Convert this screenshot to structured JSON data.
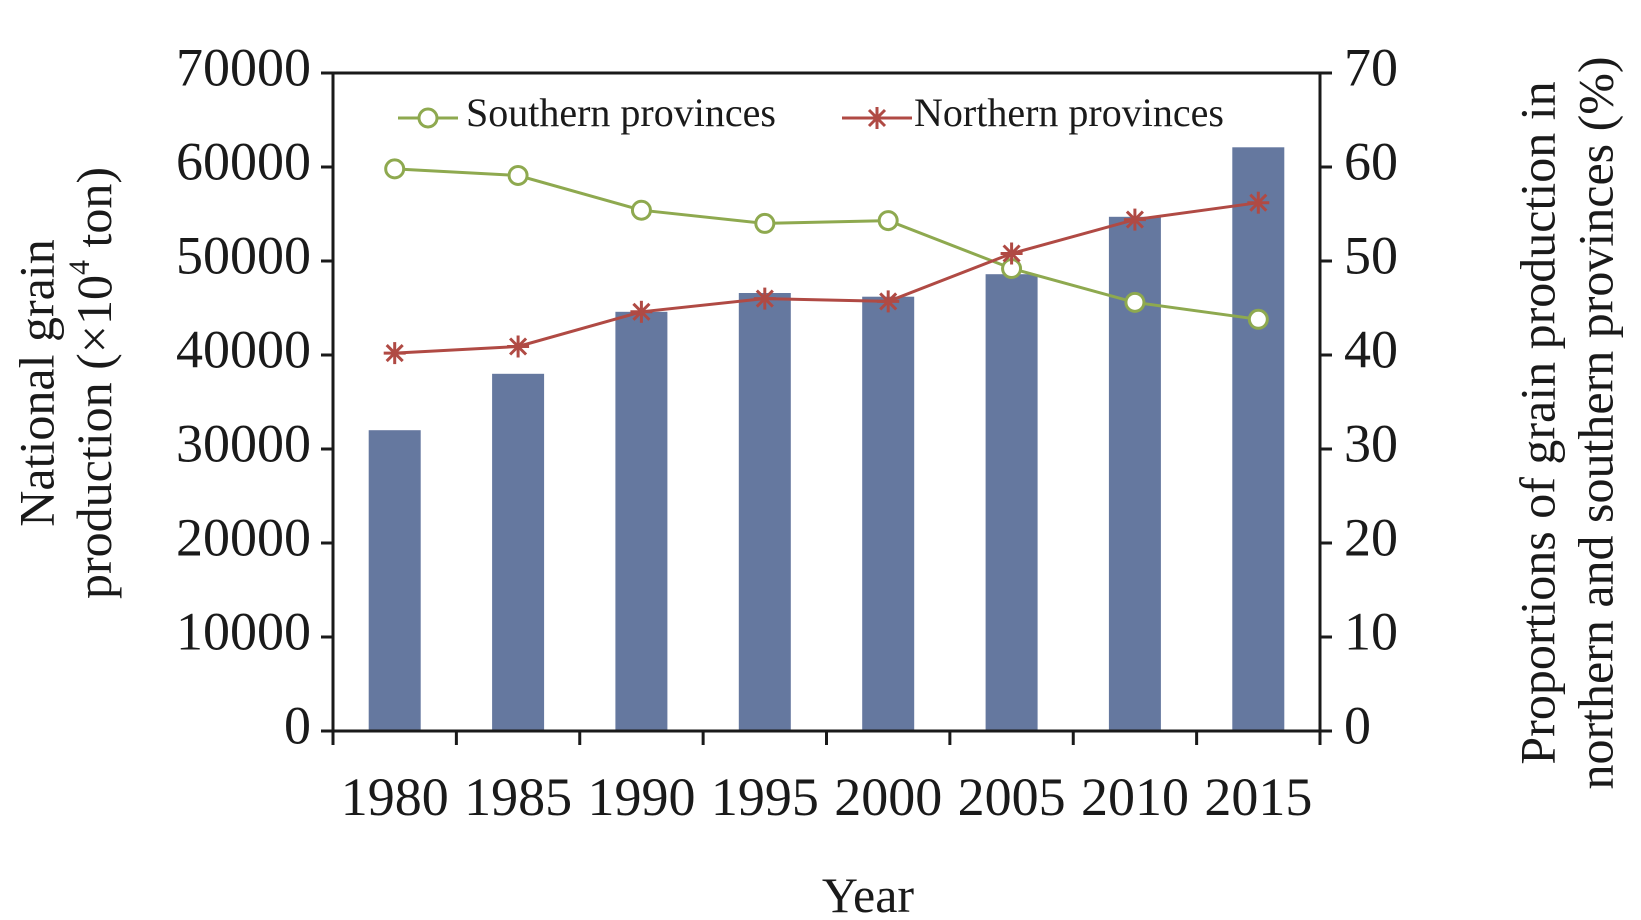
{
  "chart_data": {
    "type": "bar",
    "categories": [
      "1980",
      "1985",
      "1990",
      "1995",
      "2000",
      "2005",
      "2010",
      "2015"
    ],
    "series": [
      {
        "name": "",
        "type": "bar",
        "axis": "left",
        "color": "#65789f",
        "values": [
          32000,
          38000,
          44600,
          46600,
          46200,
          48600,
          54700,
          62100
        ]
      },
      {
        "name": "Southern provinces",
        "type": "line",
        "axis": "right",
        "color": "#8ea94f",
        "marker": "circle",
        "values": [
          59.8,
          59.1,
          55.4,
          54.0,
          54.3,
          49.2,
          45.6,
          43.8
        ]
      },
      {
        "name": "Northern provinces",
        "type": "line",
        "axis": "right",
        "color": "#b04a44",
        "marker": "asterisk",
        "values": [
          40.2,
          40.9,
          44.6,
          46.0,
          45.7,
          50.8,
          54.4,
          56.2
        ]
      }
    ],
    "xlabel": "Year",
    "ylabel_left_line1": "National grain",
    "ylabel_left_line2_main": "production (×10",
    "ylabel_left_line2_sup": "4",
    "ylabel_left_line2_end": " ton)",
    "ylabel_right_line1": "Proportions of grain production in",
    "ylabel_right_line2": "northern and southern provinces (%)",
    "ylim_left": [
      0,
      70000
    ],
    "ylim_right": [
      0,
      70
    ],
    "yticks_left": [
      "0",
      "10000",
      "20000",
      "30000",
      "40000",
      "50000",
      "60000",
      "70000"
    ],
    "yticks_right": [
      "0",
      "10",
      "20",
      "30",
      "40",
      "50",
      "60",
      "70"
    ],
    "grid": false,
    "legend_position": "top"
  }
}
